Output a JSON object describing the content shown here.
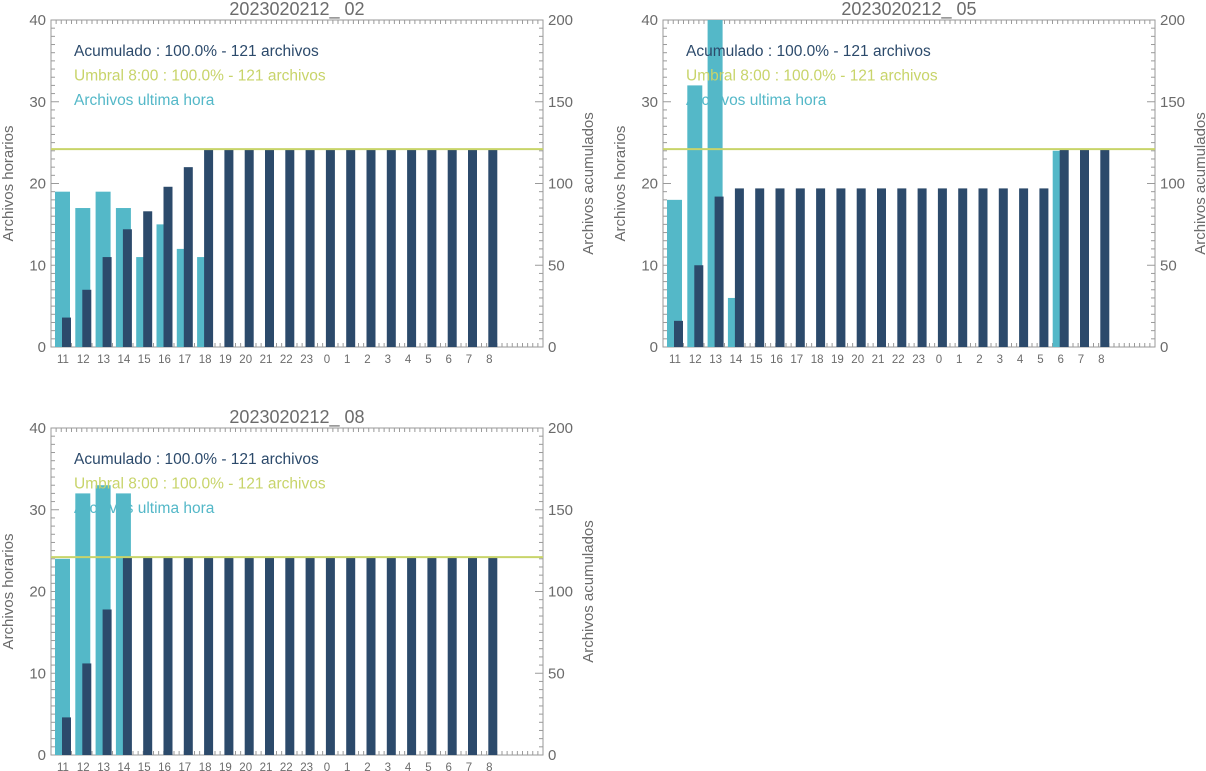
{
  "colors": {
    "hourly": "#54b8c8",
    "cumulative": "#2c4a6b",
    "threshold": "#c8d46a",
    "text": "#6b6b6b"
  },
  "chart_data": [
    {
      "type": "bar",
      "title": "2023020212_ 02",
      "ylabel": "Archivos horarios",
      "ylabel_right": "Archivos acumulados",
      "ylim": [
        0,
        40
      ],
      "ylim_right": [
        0,
        200
      ],
      "yticks": [
        "0",
        "10",
        "20",
        "30",
        "40"
      ],
      "yticks_right": [
        "0",
        "50",
        "100",
        "150",
        "200"
      ],
      "categories": [
        "11",
        "12",
        "13",
        "14",
        "15",
        "16",
        "17",
        "18",
        "19",
        "20",
        "21",
        "22",
        "23",
        "0",
        "1",
        "2",
        "3",
        "4",
        "5",
        "6",
        "7",
        "8"
      ],
      "legend": [
        "Acumulado : 100.0% - 121 archivos",
        "Umbral 8:00 : 100.0% - 121 archivos",
        "Archivos ultima hora"
      ],
      "threshold": 121,
      "series": [
        {
          "name": "Archivos ultima hora",
          "axis": "left",
          "values": [
            19,
            17,
            19,
            17,
            11,
            15,
            12,
            11,
            0,
            0,
            0,
            0,
            0,
            0,
            0,
            0,
            0,
            0,
            0,
            0,
            0,
            0
          ]
        },
        {
          "name": "Acumulado",
          "axis": "right",
          "values": [
            18,
            35,
            55,
            72,
            83,
            98,
            110,
            121,
            121,
            121,
            121,
            121,
            121,
            121,
            121,
            121,
            121,
            121,
            121,
            121,
            121,
            121
          ]
        }
      ]
    },
    {
      "type": "bar",
      "title": "2023020212_ 05",
      "ylabel": "Archivos horarios",
      "ylabel_right": "Archivos acumulados",
      "ylim": [
        0,
        40
      ],
      "ylim_right": [
        0,
        200
      ],
      "yticks": [
        "0",
        "10",
        "20",
        "30",
        "40"
      ],
      "yticks_right": [
        "0",
        "50",
        "100",
        "150",
        "200"
      ],
      "categories": [
        "11",
        "12",
        "13",
        "14",
        "15",
        "16",
        "17",
        "18",
        "19",
        "20",
        "21",
        "22",
        "23",
        "0",
        "1",
        "2",
        "3",
        "4",
        "5",
        "6",
        "7",
        "8"
      ],
      "legend": [
        "Acumulado : 100.0% - 121 archivos",
        "Umbral 8:00 : 100.0% - 121 archivos",
        "Archivos ultima hora"
      ],
      "threshold": 121,
      "series": [
        {
          "name": "Archivos ultima hora",
          "axis": "left",
          "values": [
            18,
            32,
            41,
            6,
            0,
            0,
            0,
            0,
            0,
            0,
            0,
            0,
            0,
            0,
            0,
            0,
            0,
            0,
            0,
            24,
            0,
            0
          ]
        },
        {
          "name": "Acumulado",
          "axis": "right",
          "values": [
            16,
            50,
            92,
            97,
            97,
            97,
            97,
            97,
            97,
            97,
            97,
            97,
            97,
            97,
            97,
            97,
            97,
            97,
            97,
            121,
            121,
            121
          ]
        }
      ]
    },
    {
      "type": "bar",
      "title": "2023020212_ 08",
      "ylabel": "Archivos horarios",
      "ylabel_right": "Archivos acumulados",
      "ylim": [
        0,
        40
      ],
      "ylim_right": [
        0,
        200
      ],
      "yticks": [
        "0",
        "10",
        "20",
        "30",
        "40"
      ],
      "yticks_right": [
        "0",
        "50",
        "100",
        "150",
        "200"
      ],
      "categories": [
        "11",
        "12",
        "13",
        "14",
        "15",
        "16",
        "17",
        "18",
        "19",
        "20",
        "21",
        "22",
        "23",
        "0",
        "1",
        "2",
        "3",
        "4",
        "5",
        "6",
        "7",
        "8"
      ],
      "legend": [
        "Acumulado : 100.0% - 121 archivos",
        "Umbral 8:00 : 100.0% - 121 archivos",
        "Archivos ultima hora"
      ],
      "threshold": 121,
      "series": [
        {
          "name": "Archivos ultima hora",
          "axis": "left",
          "values": [
            24,
            32,
            33,
            32,
            0,
            0,
            0,
            0,
            0,
            0,
            0,
            0,
            0,
            0,
            0,
            0,
            0,
            0,
            0,
            0,
            0,
            0
          ]
        },
        {
          "name": "Acumulado",
          "axis": "right",
          "values": [
            23,
            56,
            89,
            121,
            121,
            121,
            121,
            121,
            121,
            121,
            121,
            121,
            121,
            121,
            121,
            121,
            121,
            121,
            121,
            121,
            121,
            121
          ]
        }
      ]
    }
  ]
}
